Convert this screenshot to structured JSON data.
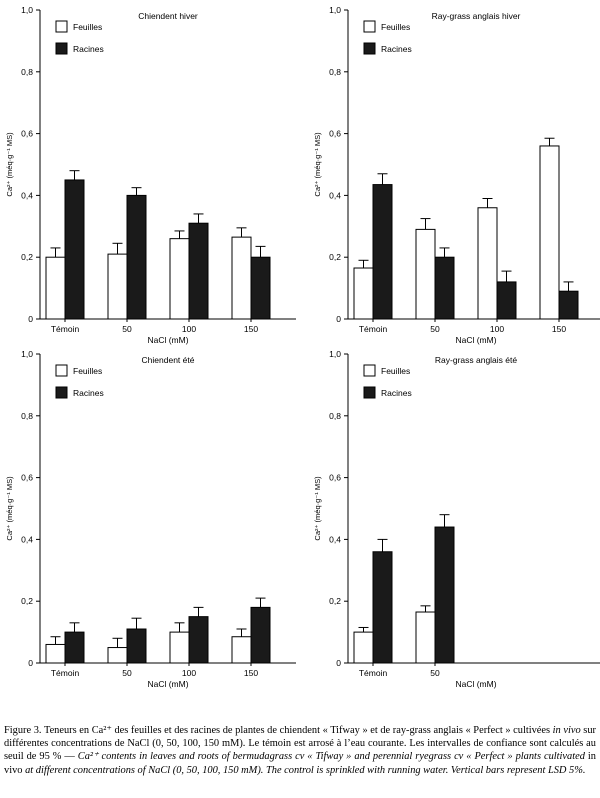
{
  "chart_data": [
    {
      "type": "bar",
      "title": "Chiendent hiver",
      "xlabel": "NaCl (mM)",
      "ylabel": "Ca²⁺ (méq·g⁻¹ MS)",
      "ylim": [
        0,
        1.0
      ],
      "yticks": [
        "0",
        "0,2",
        "0,4",
        "0,6",
        "0,8",
        "1,0"
      ],
      "legend_position": "top-left",
      "categories": [
        "Témoin",
        "50",
        "100",
        "150"
      ],
      "series": [
        {
          "name": "Feuilles",
          "color": "#ffffff",
          "values": [
            0.2,
            0.21,
            0.26,
            0.265
          ],
          "errors": [
            0.03,
            0.035,
            0.025,
            0.03
          ]
        },
        {
          "name": "Racines",
          "color": "#1a1a1a",
          "values": [
            0.45,
            0.4,
            0.31,
            0.2
          ],
          "errors": [
            0.03,
            0.025,
            0.03,
            0.035
          ]
        }
      ]
    },
    {
      "type": "bar",
      "title": "Ray-grass anglais hiver",
      "xlabel": "NaCl (mM)",
      "ylabel": "Ca²⁺ (méq·g⁻¹ MS)",
      "ylim": [
        0,
        1.0
      ],
      "yticks": [
        "0",
        "0,2",
        "0,4",
        "0,6",
        "0,8",
        "1,0"
      ],
      "legend_position": "top-left",
      "categories": [
        "Témoin",
        "50",
        "100",
        "150"
      ],
      "series": [
        {
          "name": "Feuilles",
          "color": "#ffffff",
          "values": [
            0.165,
            0.29,
            0.36,
            0.56
          ],
          "errors": [
            0.025,
            0.035,
            0.03,
            0.025
          ]
        },
        {
          "name": "Racines",
          "color": "#1a1a1a",
          "values": [
            0.435,
            0.2,
            0.12,
            0.09
          ],
          "errors": [
            0.035,
            0.03,
            0.035,
            0.03
          ]
        }
      ]
    },
    {
      "type": "bar",
      "title": "Chiendent été",
      "xlabel": "NaCl (mM)",
      "ylabel": "Ca²⁺ (méq·g⁻¹ MS)",
      "ylim": [
        0,
        1.0
      ],
      "yticks": [
        "0",
        "0,2",
        "0,4",
        "0,6",
        "0,8",
        "1,0"
      ],
      "legend_position": "top-left",
      "categories": [
        "Témoin",
        "50",
        "100",
        "150"
      ],
      "series": [
        {
          "name": "Feuilles",
          "color": "#ffffff",
          "values": [
            0.06,
            0.05,
            0.1,
            0.085
          ],
          "errors": [
            0.025,
            0.03,
            0.03,
            0.025
          ]
        },
        {
          "name": "Racines",
          "color": "#1a1a1a",
          "values": [
            0.1,
            0.11,
            0.15,
            0.18
          ],
          "errors": [
            0.03,
            0.035,
            0.03,
            0.03
          ]
        }
      ]
    },
    {
      "type": "bar",
      "title": "Ray-grass anglais été",
      "xlabel": "NaCl (mM)",
      "ylabel": "Ca²⁺ (méq·g⁻¹ MS)",
      "ylim": [
        0,
        1.0
      ],
      "yticks": [
        "0",
        "0,2",
        "0,4",
        "0,6",
        "0,8",
        "1,0"
      ],
      "legend_position": "top-left",
      "categories": [
        "Témoin",
        "50",
        "100",
        "150"
      ],
      "series": [
        {
          "name": "Feuilles",
          "color": "#ffffff",
          "values": [
            0.1,
            0.165,
            null,
            null
          ],
          "errors": [
            0.015,
            0.02,
            null,
            null
          ]
        },
        {
          "name": "Racines",
          "color": "#1a1a1a",
          "values": [
            0.36,
            0.44,
            null,
            null
          ],
          "errors": [
            0.04,
            0.04,
            null,
            null
          ]
        }
      ]
    }
  ],
  "caption": {
    "fr_a": "Figure 3. Teneurs en Ca²⁺ des feuilles et des racines de plantes de chiendent « Tifway » et de ray-grass anglais « Perfect » cultivées ",
    "fr_italic": "in vivo",
    "fr_b": " sur différentes concentrations de NaCl (0, 50, 100, 150 mM). Le témoin est arrosé à l’eau courante. Les intervalles de confiance sont calculés au seuil de 95 % — ",
    "en_a": "Ca²⁺ contents in leaves and roots of bermudagrass cv « Tifway » and perennial ryegrass cv « Perfect » plants cultivated ",
    "en_roman": "in vivo",
    "en_b": " at different concentrations of NaCl (0, 50, 100, 150 mM). The control is sprinkled with running water. Vertical bars represent LSD 5%."
  }
}
